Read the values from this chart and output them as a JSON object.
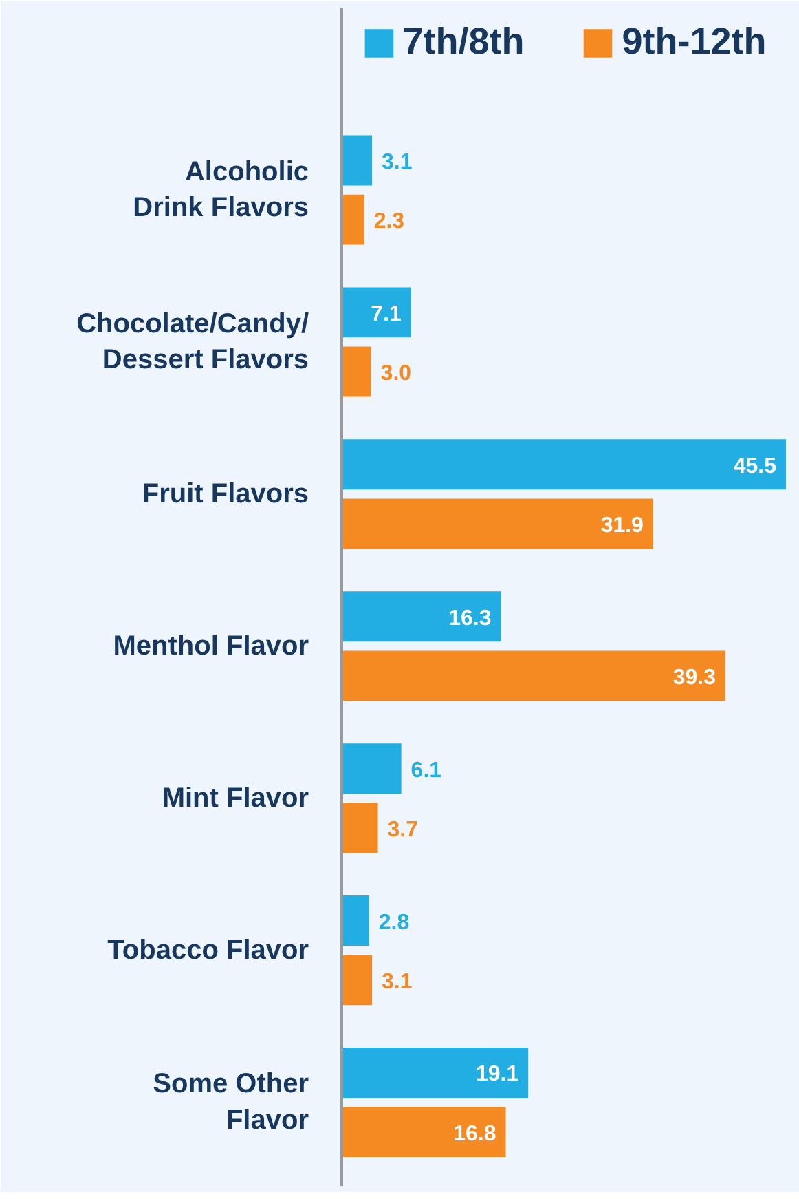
{
  "chart_data": {
    "type": "bar",
    "orientation": "horizontal",
    "categories": [
      "Alcoholic Drink Flavors",
      "Chocolate/Candy/Dessert Flavors",
      "Fruit Flavors",
      "Menthol Flavor",
      "Mint Flavor",
      "Tobacco Flavor",
      "Some Other Flavor"
    ],
    "series": [
      {
        "name": "7th/8th",
        "color": "#22ade3",
        "values": [
          3.1,
          7.1,
          45.5,
          16.3,
          6.1,
          2.8,
          19.1
        ]
      },
      {
        "name": "9th-12th",
        "color": "#f58a23",
        "values": [
          2.3,
          3.0,
          31.9,
          39.3,
          3.7,
          3.1,
          16.8
        ],
        "value_labels": [
          "2.3",
          "3.0",
          "31.9",
          "39.3",
          "3.7",
          "3.1",
          "16.8"
        ]
      }
    ],
    "data_labels": true,
    "legend": "top",
    "grid": false
  }
}
